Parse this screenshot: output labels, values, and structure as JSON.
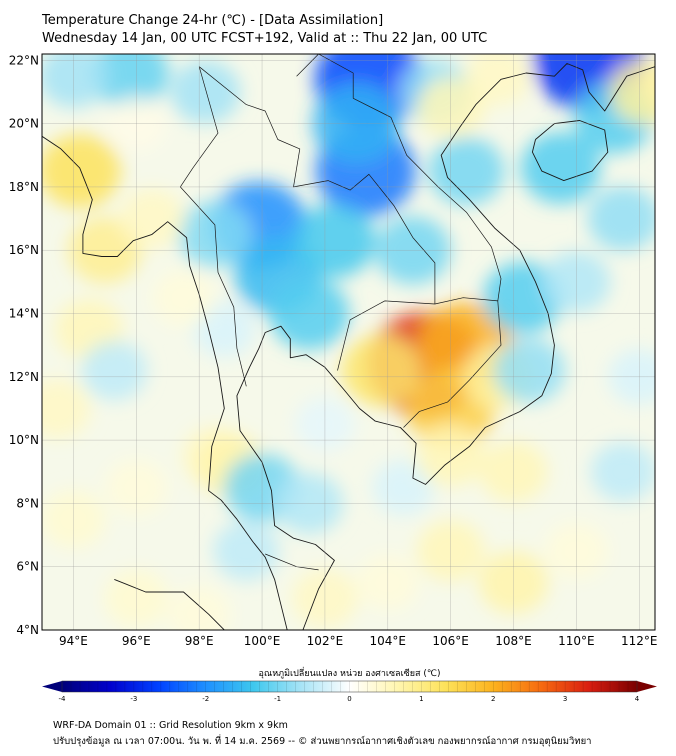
{
  "title": {
    "line1": "Temperature Change 24-hr (℃) - [Data Assimilation]",
    "line2": "Wednesday 14 Jan, 00 UTC FCST+192, Valid at :: Thu 22 Jan, 00 UTC"
  },
  "map": {
    "lon_range": [
      93,
      112.5
    ],
    "lat_range": [
      4,
      22.2
    ],
    "lon_ticks": [
      "94°E",
      "96°E",
      "98°E",
      "100°E",
      "102°E",
      "104°E",
      "106°E",
      "108°E",
      "110°E",
      "112°E"
    ],
    "lat_ticks": [
      "22°N",
      "20°N",
      "18°N",
      "16°N",
      "14°N",
      "12°N",
      "10°N",
      "8°N",
      "6°N",
      "4°N"
    ],
    "grid": true,
    "field": [
      {
        "lon": 105.2,
        "lat": 12.4,
        "value": 3.2
      },
      {
        "lon": 106.5,
        "lat": 13.0,
        "value": 2.0
      },
      {
        "lon": 106.0,
        "lat": 11.0,
        "value": 1.6
      },
      {
        "lon": 103.8,
        "lat": 12.2,
        "value": 1.2
      },
      {
        "lon": 107.5,
        "lat": 12.0,
        "value": 0.8
      },
      {
        "lon": 103.4,
        "lat": 21.4,
        "value": -2.6
      },
      {
        "lon": 103.3,
        "lat": 18.5,
        "value": -2.2
      },
      {
        "lon": 103.0,
        "lat": 20.0,
        "value": -1.6
      },
      {
        "lon": 99.9,
        "lat": 16.8,
        "value": -2.0
      },
      {
        "lon": 100.5,
        "lat": 15.2,
        "value": -1.5
      },
      {
        "lon": 102.3,
        "lat": 16.3,
        "value": -1.3
      },
      {
        "lon": 101.5,
        "lat": 14.0,
        "value": -1.2
      },
      {
        "lon": 104.8,
        "lat": 16.0,
        "value": -1.0
      },
      {
        "lon": 106.5,
        "lat": 18.5,
        "value": -1.0
      },
      {
        "lon": 108.3,
        "lat": 14.5,
        "value": -1.2
      },
      {
        "lon": 108.5,
        "lat": 12.2,
        "value": -0.8
      },
      {
        "lon": 110.4,
        "lat": 22.0,
        "value": -2.8
      },
      {
        "lon": 111.2,
        "lat": 20.2,
        "value": -1.2
      },
      {
        "lon": 109.5,
        "lat": 18.6,
        "value": -1.2
      },
      {
        "lon": 111.5,
        "lat": 17.0,
        "value": -0.8
      },
      {
        "lon": 110.0,
        "lat": 15.0,
        "value": -0.6
      },
      {
        "lon": 95.8,
        "lat": 21.6,
        "value": -1.1
      },
      {
        "lon": 94.0,
        "lat": 21.5,
        "value": -0.7
      },
      {
        "lon": 98.2,
        "lat": 21.0,
        "value": -0.7
      },
      {
        "lon": 98.5,
        "lat": 16.5,
        "value": -0.9
      },
      {
        "lon": 94.2,
        "lat": 18.5,
        "value": 1.3
      },
      {
        "lon": 95.0,
        "lat": 16.0,
        "value": 0.9
      },
      {
        "lon": 96.5,
        "lat": 17.0,
        "value": 0.5
      },
      {
        "lon": 94.5,
        "lat": 13.5,
        "value": 0.6
      },
      {
        "lon": 93.5,
        "lat": 11.0,
        "value": 0.5
      },
      {
        "lon": 95.3,
        "lat": 12.2,
        "value": -0.5
      },
      {
        "lon": 96.0,
        "lat": 8.5,
        "value": 0.3
      },
      {
        "lon": 94.0,
        "lat": 7.5,
        "value": 0.4
      },
      {
        "lon": 98.5,
        "lat": 9.5,
        "value": 0.5
      },
      {
        "lon": 99.0,
        "lat": 9.2,
        "value": 0.7
      },
      {
        "lon": 100.0,
        "lat": 8.5,
        "value": -1.0
      },
      {
        "lon": 99.5,
        "lat": 6.5,
        "value": -0.5
      },
      {
        "lon": 101.5,
        "lat": 8.0,
        "value": -0.6
      },
      {
        "lon": 96.0,
        "lat": 5.0,
        "value": 0.4
      },
      {
        "lon": 98.0,
        "lat": 4.5,
        "value": 0.3
      },
      {
        "lon": 102.0,
        "lat": 5.0,
        "value": 0.5
      },
      {
        "lon": 104.0,
        "lat": 5.5,
        "value": 0.3
      },
      {
        "lon": 106.0,
        "lat": 6.5,
        "value": 0.6
      },
      {
        "lon": 108.0,
        "lat": 5.5,
        "value": 0.7
      },
      {
        "lon": 110.0,
        "lat": 6.5,
        "value": 0.3
      },
      {
        "lon": 111.5,
        "lat": 9.0,
        "value": -0.5
      },
      {
        "lon": 112.0,
        "lat": 12.0,
        "value": -0.3
      },
      {
        "lon": 108.0,
        "lat": 9.0,
        "value": 0.6
      },
      {
        "lon": 104.5,
        "lat": 8.5,
        "value": -0.3
      },
      {
        "lon": 102.0,
        "lat": 10.5,
        "value": -0.2
      },
      {
        "lon": 96.0,
        "lat": 20.0,
        "value": 0.2
      },
      {
        "lon": 105.5,
        "lat": 21.0,
        "value": -0.8
      },
      {
        "lon": 107.5,
        "lat": 21.5,
        "value": 0.5
      },
      {
        "lon": 106.0,
        "lat": 20.5,
        "value": 0.6
      },
      {
        "lon": 112.2,
        "lat": 21.0,
        "value": 0.8
      },
      {
        "lon": 98.8,
        "lat": 13.5,
        "value": -0.3
      },
      {
        "lon": 97.5,
        "lat": 14.5,
        "value": 0.3
      },
      {
        "lon": 106.0,
        "lat": 9.5,
        "value": 0.6
      }
    ]
  },
  "colorbar": {
    "label": "อุณหภูมิเปลี่ยนแปลง หน่วย องศาเซลเซียส (℃)",
    "vmin": -4,
    "vmax": 4,
    "ticks": [
      "-4",
      "-3",
      "-2",
      "-1",
      "0",
      "1",
      "2",
      "3",
      "4"
    ],
    "colors": [
      "#00007a",
      "#0000cc",
      "#0040ff",
      "#1e90ff",
      "#3fc8ee",
      "#a8e4f6",
      "#ffffff",
      "#fff6b0",
      "#fde25a",
      "#fcb21e",
      "#f66a10",
      "#d91e10",
      "#7a0000"
    ]
  },
  "footer": {
    "line1": "WRF-DA Domain 01 :: Grid Resolution 9km x 9km",
    "line2": "ปรับปรุงข้อมูล ณ เวลา 07:00น. วัน พ. ที่ 14 ม.ค. 2569 -- © ส่วนพยากรณ์อากาศเชิงตัวเลข กองพยากรณ์อากาศ กรมอุตุนิยมวิทยา"
  }
}
